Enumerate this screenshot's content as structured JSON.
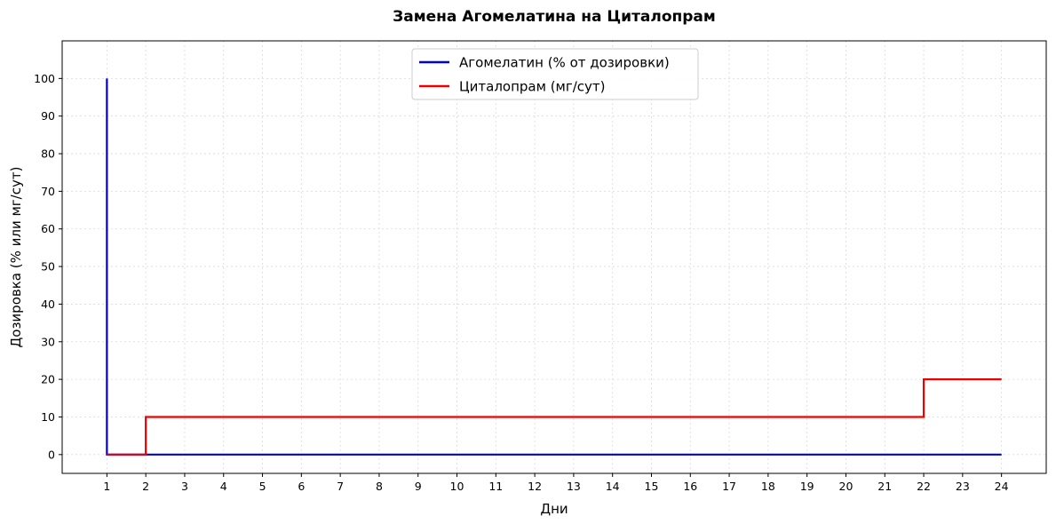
{
  "chart_data": {
    "type": "line",
    "title": "Замена Агомелатина на Циталопрам",
    "xlabel": "Дни",
    "ylabel": "Дозировка (% или мг/сут)",
    "xlim": [
      -0.15,
      25.15
    ],
    "ylim": [
      -5,
      110
    ],
    "xticks": [
      1,
      2,
      3,
      4,
      5,
      6,
      7,
      8,
      9,
      10,
      11,
      12,
      13,
      14,
      15,
      16,
      17,
      18,
      19,
      20,
      21,
      22,
      23,
      24
    ],
    "yticks": [
      0,
      10,
      20,
      30,
      40,
      50,
      60,
      70,
      80,
      90,
      100
    ],
    "grid": true,
    "legend_position": "top-center",
    "series": [
      {
        "name": "Агомелатин (% от дозировки)",
        "color": "#0000dd",
        "step": "post",
        "points": [
          [
            1,
            100
          ],
          [
            1,
            0
          ],
          [
            24,
            0
          ]
        ]
      },
      {
        "name": "Циталопрам (мг/сут)",
        "color": "#ee0000",
        "step": "post",
        "points": [
          [
            1,
            0
          ],
          [
            2,
            0
          ],
          [
            2,
            10
          ],
          [
            22,
            10
          ],
          [
            22,
            20
          ],
          [
            24,
            20
          ]
        ]
      }
    ]
  }
}
